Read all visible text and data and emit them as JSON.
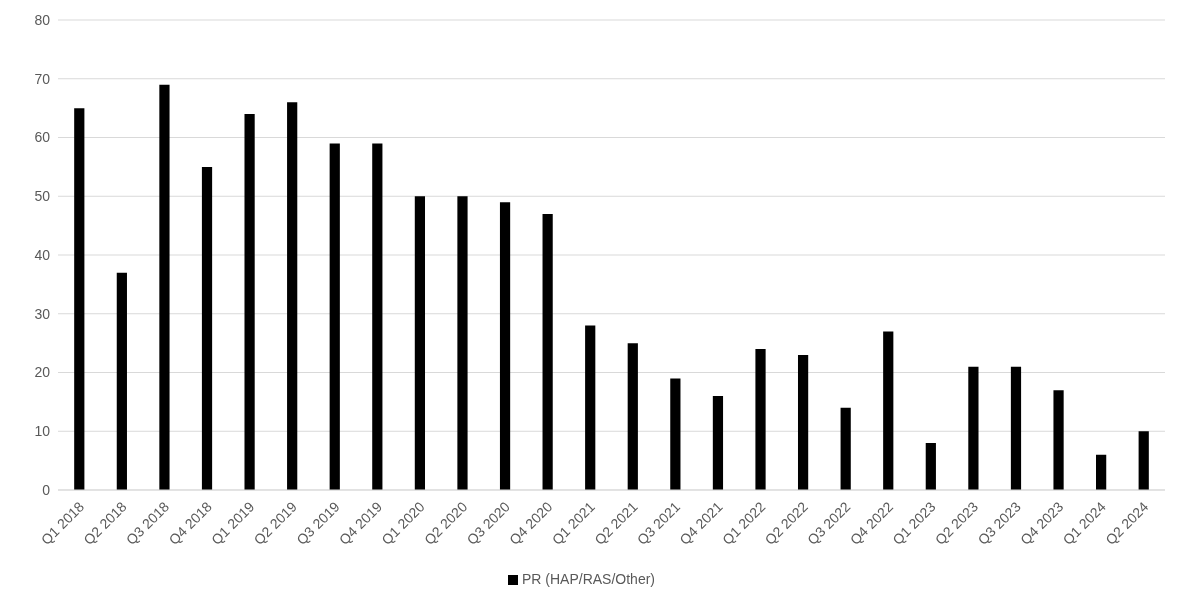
{
  "chart_data": {
    "type": "bar",
    "categories": [
      "Q1 2018",
      "Q2 2018",
      "Q3 2018",
      "Q4 2018",
      "Q1 2019",
      "Q2 2019",
      "Q3 2019",
      "Q4 2019",
      "Q1 2020",
      "Q2 2020",
      "Q3 2020",
      "Q4 2020",
      "Q1 2021",
      "Q2 2021",
      "Q3 2021",
      "Q4 2021",
      "Q1 2022",
      "Q2 2022",
      "Q3 2022",
      "Q4 2022",
      "Q1 2023",
      "Q2 2023",
      "Q3 2023",
      "Q4 2023",
      "Q1 2024",
      "Q2 2024"
    ],
    "series": [
      {
        "name": "PR (HAP/RAS/Other)",
        "color": "#000000",
        "values": [
          65,
          37,
          69,
          55,
          64,
          66,
          59,
          59,
          50,
          50,
          49,
          47,
          28,
          25,
          19,
          16,
          24,
          23,
          14,
          27,
          8,
          21,
          21,
          17,
          6,
          10
        ]
      }
    ],
    "ylim": [
      0,
      80
    ],
    "yticks": [
      0,
      10,
      20,
      30,
      40,
      50,
      60,
      70,
      80
    ],
    "grid": "y",
    "legend": "bottom"
  }
}
